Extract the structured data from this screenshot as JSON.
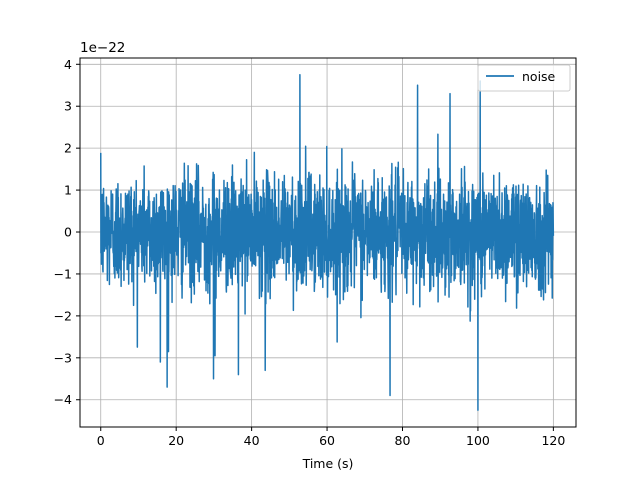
{
  "chart_data": {
    "type": "line",
    "title": "",
    "xlabel": "Time (s)",
    "ylabel": "",
    "y_offset_label": "1e−22",
    "xlim": [
      -5.5,
      126.0
    ],
    "ylim": [
      -4.65,
      4.15
    ],
    "y_scale_factor": 1e-22,
    "x_ticks": [
      0,
      20,
      40,
      60,
      80,
      100,
      120
    ],
    "x_tick_labels": [
      "0",
      "20",
      "40",
      "60",
      "80",
      "100",
      "120"
    ],
    "y_ticks": [
      -4,
      -3,
      -2,
      -1,
      0,
      1,
      2,
      3,
      4
    ],
    "y_tick_labels": [
      "−4",
      "−3",
      "−2",
      "−1",
      "0",
      "1",
      "2",
      "3",
      "4"
    ],
    "grid": true,
    "legend_position": "upper right",
    "series": [
      {
        "name": "noise",
        "color": "#1f77b4",
        "x_range": [
          0,
          120
        ],
        "std": 0.68,
        "notable_peaks": [
          {
            "x": 52.8,
            "y": 3.75
          },
          {
            "x": 92.6,
            "y": 3.3
          },
          {
            "x": 100.6,
            "y": 3.6
          },
          {
            "x": 84.0,
            "y": 3.5
          },
          {
            "x": 100.0,
            "y": -4.25
          },
          {
            "x": 76.7,
            "y": -3.9
          },
          {
            "x": 17.6,
            "y": -3.7
          },
          {
            "x": 29.9,
            "y": -3.5
          },
          {
            "x": 36.5,
            "y": -3.4
          },
          {
            "x": 43.6,
            "y": -3.3
          },
          {
            "x": 15.8,
            "y": -3.1
          },
          {
            "x": 30.3,
            "y": -2.95
          }
        ]
      }
    ]
  }
}
